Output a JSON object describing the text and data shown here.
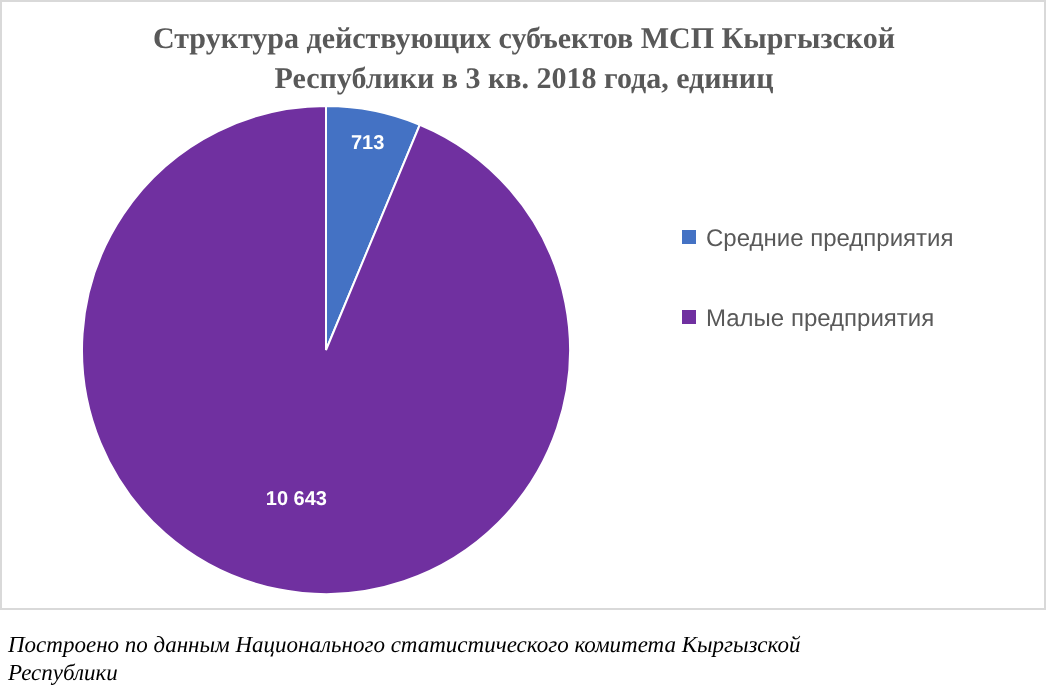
{
  "chart_data": {
    "type": "pie",
    "title": "Структура действующих субъектов МСП Кыргызской Республики в 3 кв. 2018 года, единиц",
    "categories": [
      "Средние предприятия",
      "Малые предприятия"
    ],
    "values": [
      713,
      10643
    ],
    "colors": [
      "#4472c4",
      "#7030a0"
    ],
    "value_labels": [
      "713",
      "10 643"
    ],
    "legend": "right",
    "annotations": [
      "Построено по данным Национального статистического комитета Кыргызской Республики"
    ]
  }
}
